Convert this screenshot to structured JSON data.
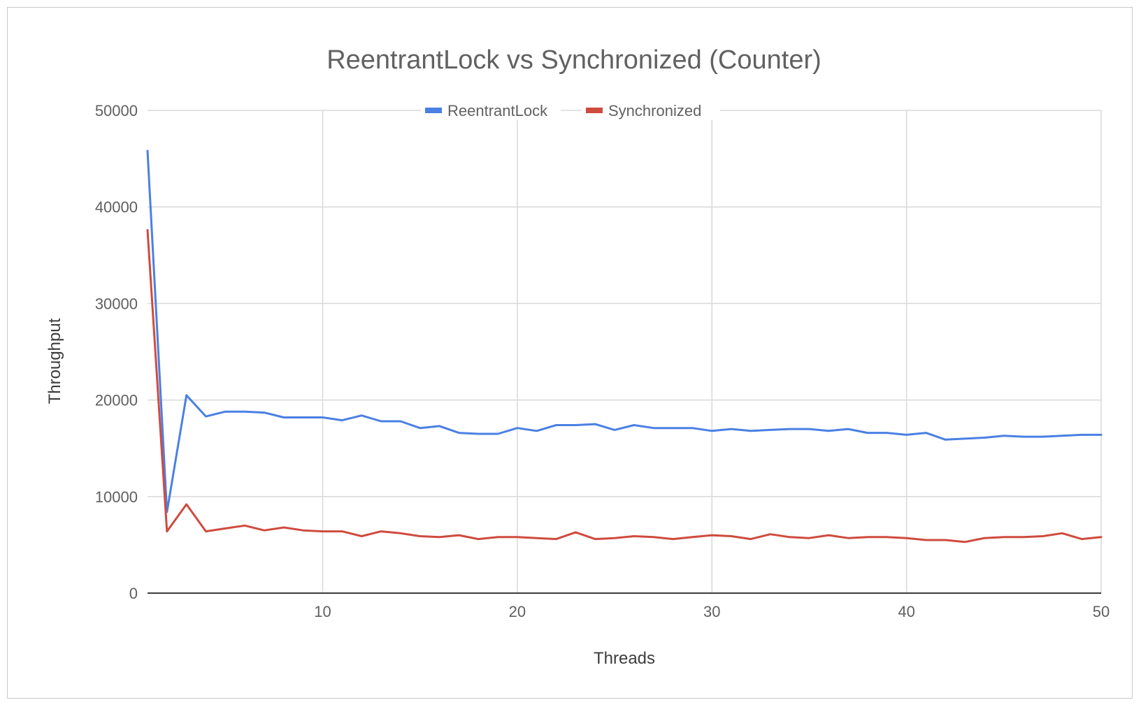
{
  "chart_data": {
    "type": "line",
    "title": "ReentrantLock vs Synchronized (Counter)",
    "xlabel": "Threads",
    "ylabel": "Throughput",
    "xlim": [
      1,
      50
    ],
    "ylim": [
      0,
      50000
    ],
    "x_ticks": [
      "10",
      "20",
      "30",
      "40",
      "50"
    ],
    "y_ticks": [
      "0",
      "10000",
      "20000",
      "30000",
      "40000",
      "50000"
    ],
    "grid": true,
    "legend_position": "top",
    "x": [
      1,
      2,
      3,
      4,
      5,
      6,
      7,
      8,
      9,
      10,
      11,
      12,
      13,
      14,
      15,
      16,
      17,
      18,
      19,
      20,
      21,
      22,
      23,
      24,
      25,
      26,
      27,
      28,
      29,
      30,
      31,
      32,
      33,
      34,
      35,
      36,
      37,
      38,
      39,
      40,
      41,
      42,
      43,
      44,
      45,
      46,
      47,
      48,
      49,
      50
    ],
    "series": [
      {
        "name": "ReentrantLock",
        "color": "#4a80e3",
        "values": [
          45800,
          8400,
          20500,
          18300,
          18800,
          18800,
          18700,
          18200,
          18200,
          18200,
          17900,
          18400,
          17800,
          17800,
          17100,
          17300,
          16600,
          16500,
          16500,
          17100,
          16800,
          17400,
          17400,
          17500,
          16900,
          17400,
          17100,
          17100,
          17100,
          16800,
          17000,
          16800,
          16900,
          17000,
          17000,
          16800,
          17000,
          16600,
          16600,
          16400,
          16600,
          15900,
          16000,
          16100,
          16300,
          16200,
          16200,
          16300,
          16400,
          16400
        ]
      },
      {
        "name": "Synchronized",
        "color": "#cf4b3e",
        "values": [
          37600,
          6400,
          9200,
          6400,
          6700,
          7000,
          6500,
          6800,
          6500,
          6400,
          6400,
          5900,
          6400,
          6200,
          5900,
          5800,
          6000,
          5600,
          5800,
          5800,
          5700,
          5600,
          6300,
          5600,
          5700,
          5900,
          5800,
          5600,
          5800,
          6000,
          5900,
          5600,
          6100,
          5800,
          5700,
          6000,
          5700,
          5800,
          5800,
          5700,
          5500,
          5500,
          5300,
          5700,
          5800,
          5800,
          5900,
          6200,
          5600,
          5800
        ]
      }
    ]
  }
}
